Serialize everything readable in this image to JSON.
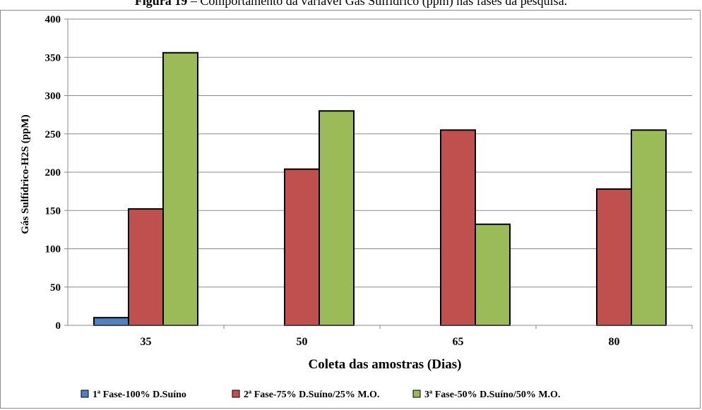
{
  "caption": {
    "figure_label": "Figura 19",
    "text": " – Comportamento da variável Gás Sulfídrico (ppm) nas fases da pesquisa."
  },
  "chart_data": {
    "type": "bar",
    "title": "",
    "xlabel": "Coleta das amostras (Dias)",
    "ylabel": "Gás Sulfídrico-H2S  (ppM)",
    "categories": [
      "35",
      "50",
      "65",
      "80"
    ],
    "ylim": [
      0,
      400
    ],
    "yticks": [
      0,
      50,
      100,
      150,
      200,
      250,
      300,
      350,
      400
    ],
    "grid": true,
    "legend_position": "bottom",
    "series": [
      {
        "name": "1ª Fase-100% D.Suíno",
        "color": "#4F81BD",
        "values": [
          10,
          0,
          0,
          0
        ]
      },
      {
        "name": "2ª Fase-75% D.Suíno/25% M.O.",
        "color": "#C0504D",
        "values": [
          152,
          204,
          255,
          178
        ]
      },
      {
        "name": "3ª Fase-50% D.Suíno/50% M.O.",
        "color": "#9BBB59",
        "values": [
          356,
          280,
          132,
          255
        ]
      }
    ]
  }
}
